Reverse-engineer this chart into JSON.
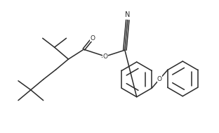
{
  "background_color": "#ffffff",
  "line_color": "#2a2a2a",
  "line_width": 1.1,
  "figsize": [
    3.12,
    1.89
  ],
  "dpi": 100,
  "N_label": "N",
  "O_ester_label": "O",
  "O_carbonyl_label": "O",
  "O_phenoxy_label": "O"
}
